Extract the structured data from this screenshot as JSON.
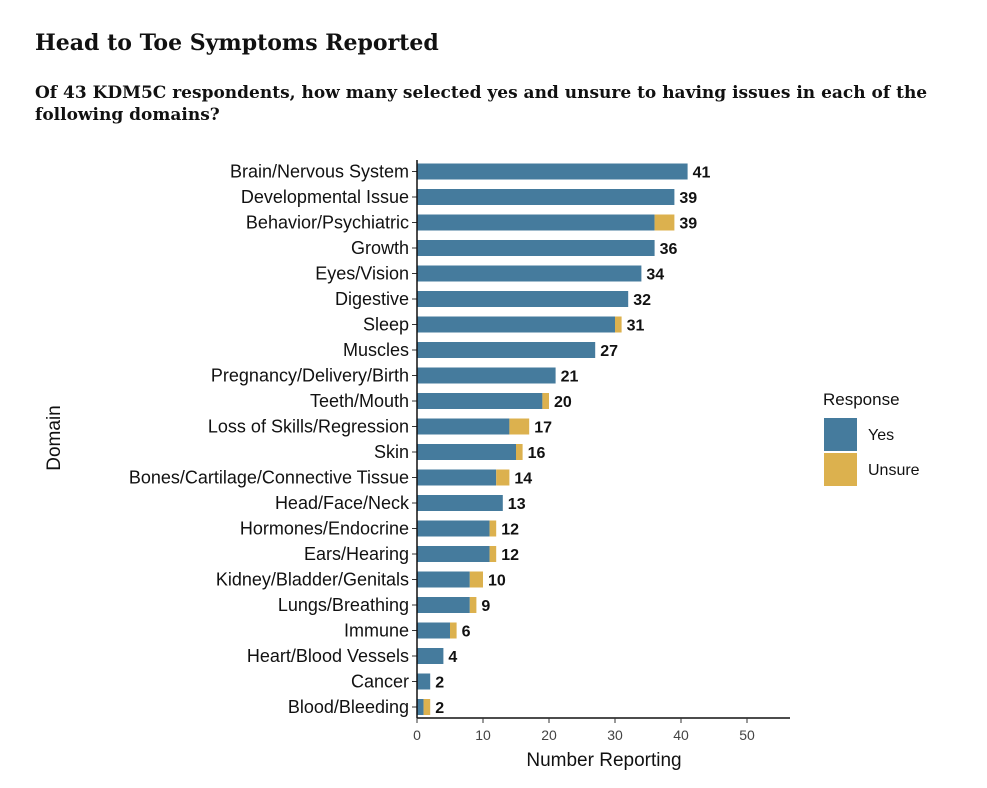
{
  "chart_data": {
    "type": "bar",
    "orientation": "horizontal",
    "stacked": true,
    "title": "Head to Toe Symptoms Reported",
    "subtitle": "Of 43 KDM5C respondents, how many selected yes and unsure to having issues in each of the following domains?",
    "xlabel": "Number Reporting",
    "ylabel": "Domain",
    "xlim": [
      0,
      56
    ],
    "xticks": [
      0,
      10,
      20,
      30,
      40,
      50
    ],
    "grid": false,
    "legend_position": "right",
    "legend_title": "Response",
    "categories": [
      "Brain/Nervous System",
      "Developmental Issue",
      "Behavior/Psychiatric",
      "Growth",
      "Eyes/Vision",
      "Digestive",
      "Sleep",
      "Muscles",
      "Pregnancy/Delivery/Birth",
      "Teeth/Mouth",
      "Loss of Skills/Regression",
      "Skin",
      "Bones/Cartilage/Connective Tissue",
      "Head/Face/Neck",
      "Hormones/Endocrine",
      "Ears/Hearing",
      "Kidney/Bladder/Genitals",
      "Lungs/Breathing",
      "Immune",
      "Heart/Blood Vessels",
      "Cancer",
      "Blood/Bleeding"
    ],
    "series": [
      {
        "name": "Yes",
        "color": "#457b9d",
        "values": [
          41,
          39,
          36,
          36,
          34,
          32,
          30,
          27,
          21,
          19,
          14,
          15,
          12,
          13,
          11,
          11,
          8,
          8,
          5,
          4,
          2,
          1
        ]
      },
      {
        "name": "Unsure",
        "color": "#dcb14e",
        "values": [
          0,
          0,
          3,
          0,
          0,
          0,
          1,
          0,
          0,
          1,
          3,
          1,
          2,
          0,
          1,
          1,
          2,
          1,
          1,
          0,
          0,
          1
        ]
      }
    ],
    "totals": [
      41,
      39,
      39,
      36,
      34,
      32,
      31,
      27,
      21,
      20,
      17,
      16,
      14,
      13,
      12,
      12,
      10,
      9,
      6,
      4,
      2,
      2
    ]
  }
}
